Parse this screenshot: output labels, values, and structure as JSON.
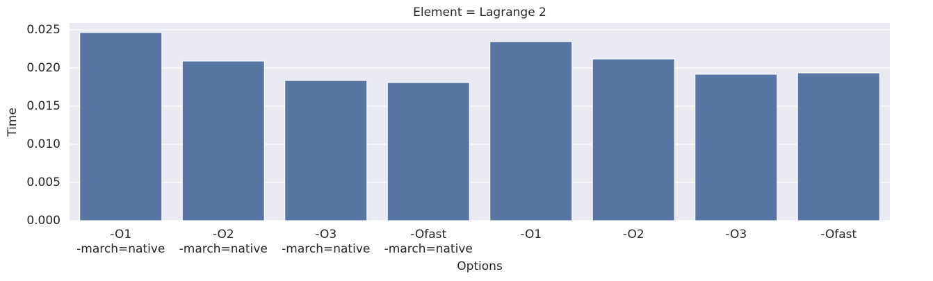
{
  "chart_data": {
    "type": "bar",
    "title": "Element = Lagrange 2",
    "x_label": "Options",
    "y_label": "Time",
    "categories": [
      "-O1\n-march=native",
      "-O2\n-march=native",
      "-O3\n-march=native",
      "-Ofast\n-march=native",
      "-O1",
      "-O2",
      "-O3",
      "-Ofast"
    ],
    "values": [
      0.02464,
      0.02091,
      0.01836,
      0.01809,
      0.02345,
      0.02118,
      0.01918,
      0.01936
    ],
    "color": "#5975a4",
    "ylim": [
      0,
      0.02591
    ],
    "yticks": [
      {
        "value": 0,
        "label": "0.000"
      },
      {
        "value": 0.005,
        "label": "0.005"
      },
      {
        "value": 0.01,
        "label": "0.010"
      },
      {
        "value": 0.015,
        "label": "0.015"
      },
      {
        "value": 0.02,
        "label": "0.020"
      },
      {
        "value": 0.025,
        "label": "0.025"
      }
    ],
    "grid": true
  }
}
